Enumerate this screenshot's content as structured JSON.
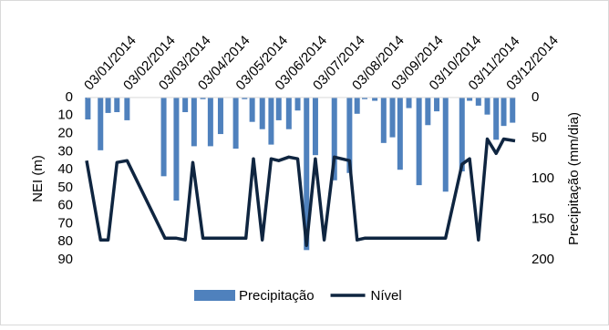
{
  "chart_data": {
    "type": "bar-line",
    "xlim": [
      "2014-01-01",
      "2014-12-06"
    ],
    "xticks": [
      {
        "value": "2014-01-03",
        "label": "03/01/2014"
      },
      {
        "value": "2014-02-03",
        "label": "03/02/2014"
      },
      {
        "value": "2014-03-03",
        "label": "03/03/2014"
      },
      {
        "value": "2014-04-03",
        "label": "03/04/2014"
      },
      {
        "value": "2014-05-03",
        "label": "03/05/2014"
      },
      {
        "value": "2014-06-03",
        "label": "03/06/2014"
      },
      {
        "value": "2014-07-03",
        "label": "03/07/2014"
      },
      {
        "value": "2014-08-03",
        "label": "03/08/2014"
      },
      {
        "value": "2014-09-03",
        "label": "03/09/2014"
      },
      {
        "value": "2014-10-03",
        "label": "03/10/2014"
      },
      {
        "value": "2014-11-03",
        "label": "03/11/2014"
      },
      {
        "value": "2014-12-03",
        "label": "03/12/2014"
      }
    ],
    "ylabel": "NEI (m)",
    "ylim": [
      0,
      90
    ],
    "yticks": [
      0,
      10,
      20,
      30,
      40,
      50,
      60,
      70,
      80,
      90
    ],
    "y2label": "Precipitação (mm/dia)",
    "y2lim": [
      0,
      200
    ],
    "y2ticks": [
      0,
      50,
      100,
      150,
      200
    ],
    "reversed_y": true,
    "legend": "bottom",
    "series": [
      {
        "name": "Precipitação",
        "type": "bar",
        "axis": "y2",
        "color": "#4f81bd",
        "x": [
          "2014-01-02",
          "2014-01-12",
          "2014-01-18",
          "2014-01-25",
          "2014-02-02",
          "2014-03-03",
          "2014-03-13",
          "2014-03-20",
          "2014-03-27",
          "2014-04-03",
          "2014-04-09",
          "2014-04-17",
          "2014-04-29",
          "2014-05-06",
          "2014-05-12",
          "2014-05-20",
          "2014-05-27",
          "2014-06-02",
          "2014-06-10",
          "2014-06-17",
          "2014-06-24",
          "2014-07-01",
          "2014-07-16",
          "2014-07-28",
          "2014-08-03",
          "2014-08-09",
          "2014-08-17",
          "2014-08-24",
          "2014-08-31",
          "2014-09-06",
          "2014-09-13",
          "2014-09-21",
          "2014-09-28",
          "2014-10-05",
          "2014-10-12",
          "2014-10-25",
          "2014-10-31",
          "2014-11-07",
          "2014-11-14",
          "2014-11-21",
          "2014-11-27",
          "2014-12-04"
        ],
        "values": [
          27,
          65,
          19,
          18,
          28,
          97,
          127,
          18,
          60,
          2,
          60,
          45,
          63,
          2,
          30,
          39,
          58,
          28,
          39,
          16,
          188,
          71,
          102,
          93,
          20,
          2,
          4,
          56,
          49,
          89,
          13,
          108,
          34,
          17,
          116,
          91,
          4,
          10,
          21,
          52,
          35,
          31
        ]
      },
      {
        "name": "Nível",
        "type": "line",
        "color": "#0f2540",
        "x": [
          "2014-01-01",
          "2014-01-12",
          "2014-01-18",
          "2014-01-25",
          "2014-02-02",
          "2014-03-04",
          "2014-03-13",
          "2014-03-20",
          "2014-03-26",
          "2014-04-03",
          "2014-05-07",
          "2014-05-13",
          "2014-05-20",
          "2014-05-27",
          "2014-06-02",
          "2014-06-10",
          "2014-06-17",
          "2014-06-24",
          "2014-07-01",
          "2014-07-08",
          "2014-07-16",
          "2014-07-28",
          "2014-08-03",
          "2014-08-09",
          "2014-10-12",
          "2014-10-25",
          "2014-10-31",
          "2014-11-07",
          "2014-11-14",
          "2014-11-21",
          "2014-11-27",
          "2014-12-06"
        ],
        "values": [
          35,
          79,
          79,
          36,
          35,
          78,
          78,
          79,
          36,
          78,
          78,
          34,
          79,
          34,
          35,
          33,
          34,
          82,
          34,
          79,
          33,
          35,
          79,
          78,
          78,
          37,
          34,
          79,
          23,
          31,
          23,
          24
        ]
      }
    ]
  }
}
